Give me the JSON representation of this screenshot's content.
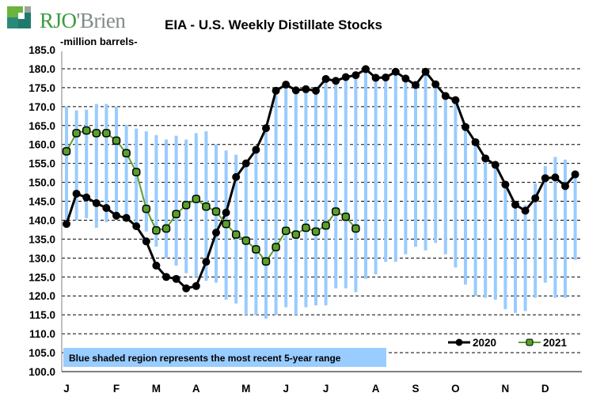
{
  "brand": {
    "logo_text": "RJO'Brien"
  },
  "chart_data": {
    "type": "line",
    "title": "EIA - U.S. Weekly Distillate Stocks",
    "ylabel": "-million barrels-",
    "ylim": [
      100,
      185
    ],
    "yticks": [
      "100.0",
      "105.0",
      "110.0",
      "115.0",
      "120.0",
      "125.0",
      "130.0",
      "135.0",
      "140.0",
      "145.0",
      "150.0",
      "155.0",
      "160.0",
      "165.0",
      "170.0",
      "175.0",
      "180.0",
      "185.0"
    ],
    "month_labels": [
      "J",
      "F",
      "M",
      "A",
      "M",
      "J",
      "J",
      "A",
      "S",
      "O",
      "N",
      "D"
    ],
    "month_start_week": [
      0,
      5,
      9,
      13,
      18,
      22,
      26,
      31,
      35,
      39,
      44,
      48
    ],
    "grid": true,
    "legend_position": "bottom-right",
    "note": "Blue shaded region represents the most recent 5-year range",
    "range": {
      "name": "5-year range",
      "high": [
        170,
        169,
        169.2,
        170.7,
        170.7,
        170,
        165.2,
        164.2,
        163.5,
        162.5,
        161.3,
        162.3,
        161.3,
        163,
        163.5,
        160,
        158.4,
        157.3,
        155,
        158,
        164,
        173,
        175.5,
        174,
        174.5,
        174.4,
        177,
        176.6,
        177.6,
        178.3,
        179.5,
        177,
        177.5,
        179,
        177,
        175.5,
        179,
        175.6,
        172.5,
        171,
        164.3,
        160.3,
        156,
        154,
        149,
        144,
        144,
        149.7,
        154.3,
        156.7,
        156,
        152
      ],
      "low": [
        140,
        140,
        140.5,
        138,
        139.5,
        140,
        140,
        139,
        137,
        133,
        130,
        128,
        126,
        125,
        124,
        123.5,
        119,
        118,
        115,
        115,
        114,
        115,
        117,
        115,
        117,
        117.5,
        117.5,
        122,
        122,
        121,
        124.5,
        125.7,
        129,
        129,
        131,
        133,
        132,
        134,
        131,
        127.5,
        123,
        120,
        119.5,
        119,
        116.5,
        115.5,
        116,
        119.5,
        123.5,
        119.5,
        119.5,
        129.5
      ]
    },
    "series": [
      {
        "name": "2020",
        "color": "#000000",
        "values": [
          139,
          147,
          146,
          144.5,
          143.2,
          141.2,
          140.6,
          138.4,
          134.4,
          128,
          125,
          124.5,
          122,
          122.6,
          129,
          136.7,
          142,
          151.4,
          155,
          158.6,
          164.3,
          174.2,
          175.8,
          174.3,
          174.6,
          174.2,
          177.3,
          176.8,
          177.8,
          178.3,
          179.9,
          177.6,
          177.7,
          179.2,
          177.4,
          175.7,
          179.2,
          175.9,
          172.8,
          171.7,
          164.6,
          160.6,
          156.3,
          154.6,
          149.4,
          144.1,
          142.5,
          145.8,
          151.1,
          151.3,
          149,
          152.1
        ]
      },
      {
        "name": "2021",
        "color": "#5aa02c",
        "values": [
          158.2,
          163,
          163.7,
          163,
          163,
          161,
          157.7,
          152.7,
          143,
          137.3,
          137.8,
          141.6,
          144,
          145.6,
          143.6,
          142.3,
          139,
          136.2,
          134.6,
          132.3,
          129.1,
          132.9,
          137.2,
          136.2,
          138,
          137,
          138.6,
          142.3,
          140.9,
          137.8
        ]
      }
    ]
  }
}
